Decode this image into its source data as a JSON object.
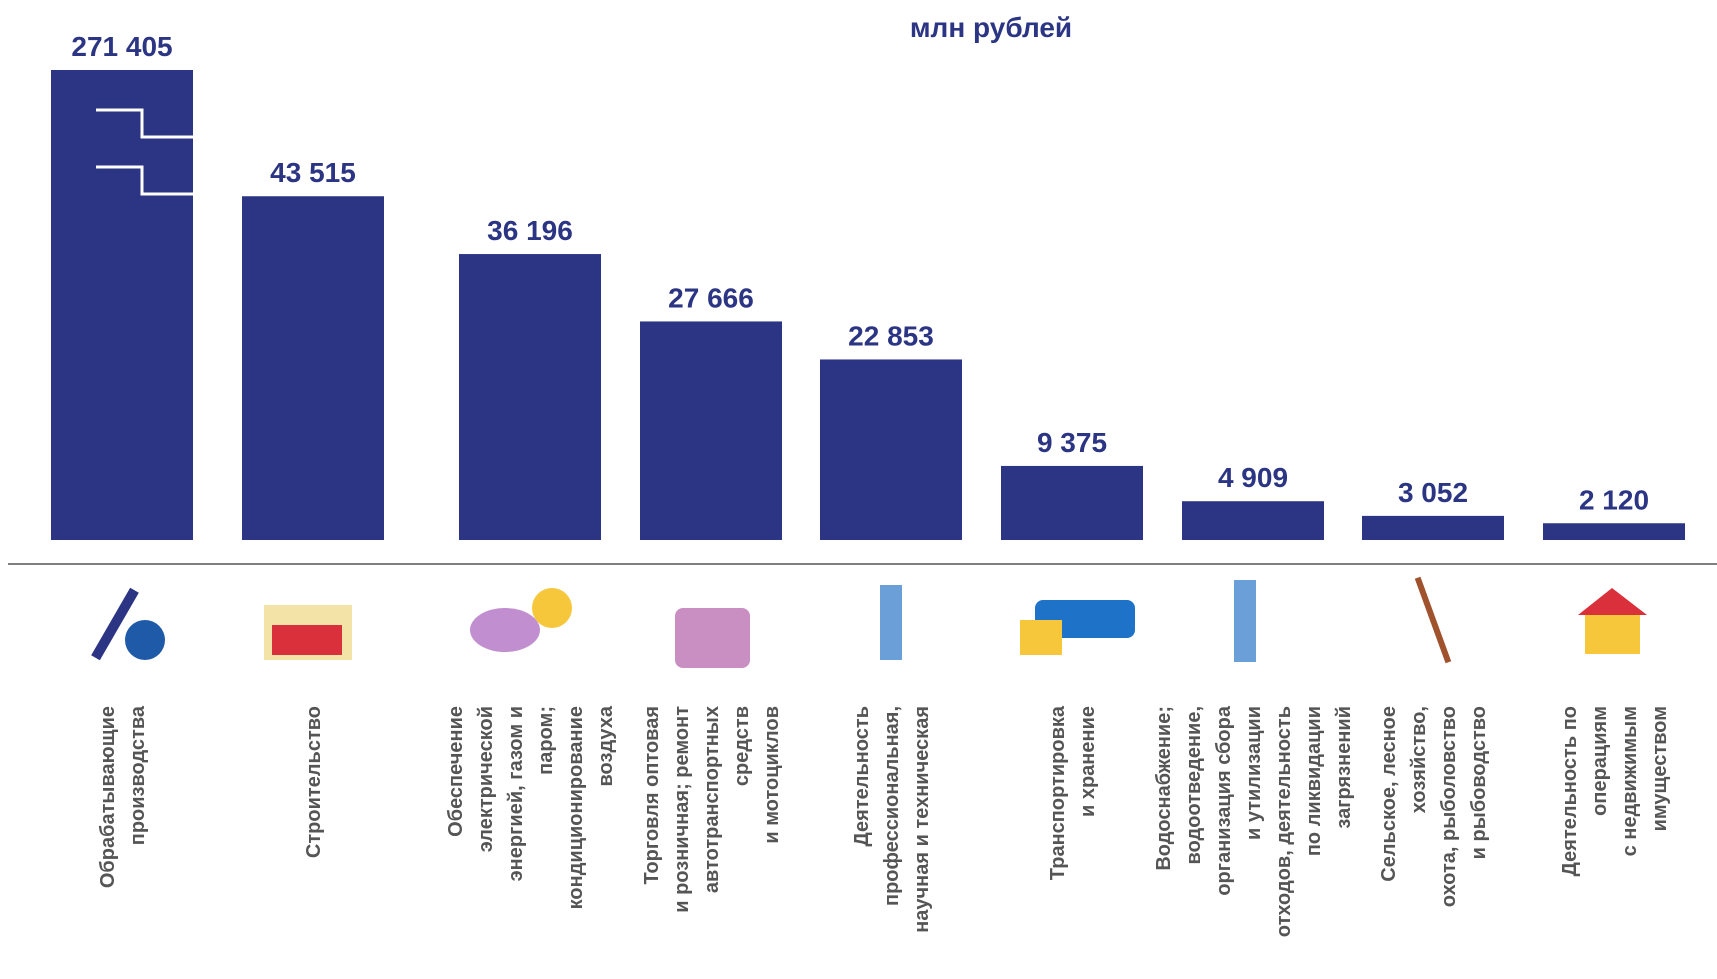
{
  "chart_data": {
    "type": "bar",
    "title": "млн рублей",
    "categories": [
      "Обрабатывающие\nпроизводства",
      "Строительство",
      "Обеспечение\nэлектрической\nэнергией, газом и\nпаром;\nкондиционирование\nвоздуха",
      "Торговля оптовая\nи розничная; ремонт\nавтотранспортных\nсредств\nи мотоциклов",
      "Деятельность\nпрофессиональная,\nнаучная и техническая",
      "Транспортировка\nи хранение",
      "Водоснабжение;\nводоотведение,\nорганизация сбора\nи утилизации\nотходов, деятельность\nпо ликвидации\nзагрязнений",
      "Сельское, лесное\nхозяйство,\nохота, рыболовство\nи рыбоводство",
      "Деятельность по\nоперациям\nс недвижимым\nимуществом"
    ],
    "values": [
      271405,
      43515,
      36196,
      27666,
      22853,
      9375,
      4909,
      3052,
      2120
    ],
    "value_labels": [
      "271 405",
      "43 515",
      "36 196",
      "27 666",
      "22 853",
      "9 375",
      "4 909",
      "3 052",
      "2 120"
    ],
    "color": "#2b3584"
  }
}
